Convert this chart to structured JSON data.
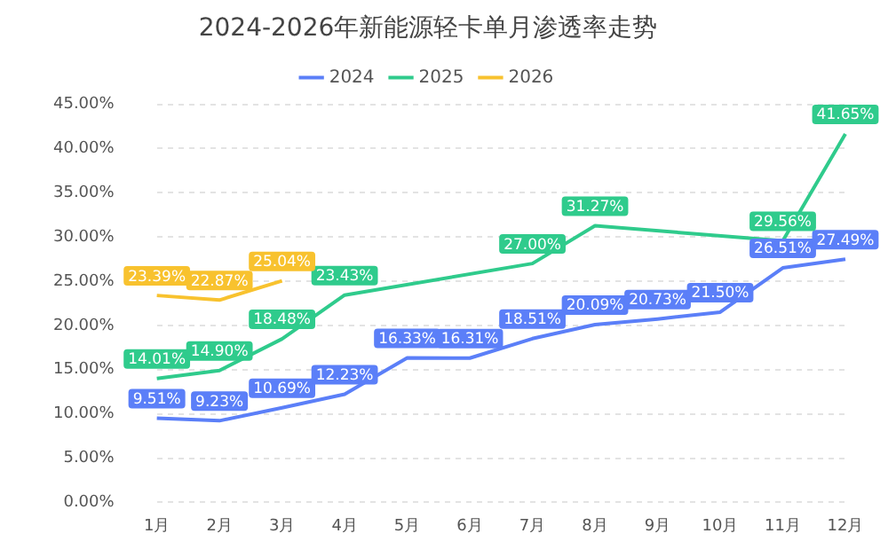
{
  "chart_data": {
    "type": "line",
    "title": "2024-2026年新能源轻卡单月渗透率走势",
    "categories": [
      "1月",
      "2月",
      "3月",
      "4月",
      "5月",
      "6月",
      "7月",
      "8月",
      "9月",
      "10月",
      "11月",
      "12月"
    ],
    "series": [
      {
        "name": "2024",
        "color": "#5b7ff8",
        "values": [
          9.51,
          9.23,
          10.69,
          12.23,
          16.33,
          16.31,
          18.51,
          20.09,
          20.73,
          21.5,
          26.51,
          27.49
        ],
        "value_labels": [
          "9.51%",
          "9.23%",
          "10.69%",
          "12.23%",
          "16.33%",
          "16.31%",
          "18.51%",
          "20.09%",
          "20.73%",
          "21.50%",
          "26.51%",
          "27.49%"
        ]
      },
      {
        "name": "2025",
        "color": "#2fcb8c",
        "values": [
          14.01,
          14.9,
          18.48,
          23.43,
          null,
          null,
          27.0,
          31.27,
          null,
          null,
          29.56,
          41.65
        ],
        "value_labels": [
          "14.01%",
          "14.90%",
          "18.48%",
          "23.43%",
          null,
          null,
          "27.00%",
          "31.27%",
          null,
          null,
          "29.56%",
          "41.65%"
        ]
      },
      {
        "name": "2026",
        "color": "#f8c22e",
        "values": [
          23.39,
          22.87,
          25.04,
          null,
          null,
          null,
          null,
          null,
          null,
          null,
          null,
          null
        ],
        "value_labels": [
          "23.39%",
          "22.87%",
          "25.04%",
          null,
          null,
          null,
          null,
          null,
          null,
          null,
          null,
          null
        ]
      }
    ],
    "ylim": [
      0,
      45
    ],
    "yticks": [
      {
        "value": 0,
        "label": "0.00%"
      },
      {
        "value": 5,
        "label": "5.00%"
      },
      {
        "value": 10,
        "label": "10.00%"
      },
      {
        "value": 15,
        "label": "15.00%"
      },
      {
        "value": 20,
        "label": "20.00%"
      },
      {
        "value": 25,
        "label": "25.00%"
      },
      {
        "value": 30,
        "label": "30.00%"
      },
      {
        "value": 35,
        "label": "35.00%"
      },
      {
        "value": 40,
        "label": "40.00%"
      },
      {
        "value": 45,
        "label": "45.00%"
      }
    ],
    "grid": "y",
    "legend": "top",
    "marker": "none",
    "line_style": "solid"
  }
}
